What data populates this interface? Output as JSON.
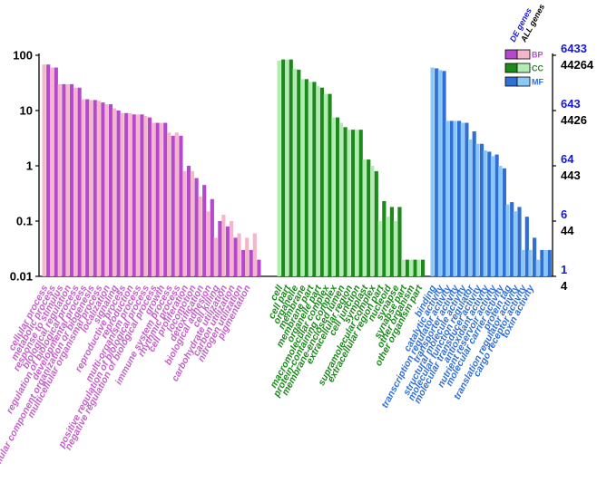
{
  "chart_data": {
    "type": "bar",
    "y_scale": "log",
    "ylim": [
      0.01,
      100
    ],
    "y_ticks": [
      "100",
      "10",
      "1",
      "0.1",
      "0.01"
    ],
    "right_axis": [
      {
        "de": "6433",
        "all": "44264"
      },
      {
        "de": "643",
        "all": "4426"
      },
      {
        "de": "64",
        "all": "443"
      },
      {
        "de": "6",
        "all": "44"
      },
      {
        "de": "1",
        "all": "4"
      }
    ],
    "legend": {
      "header_de": "DE genes",
      "header_all": "ALL genes",
      "items": [
        {
          "label": "BP",
          "de_color": "#b449cf",
          "all_color": "#f4b6c9",
          "text_color": "#b449cf"
        },
        {
          "label": "CC",
          "de_color": "#1b8a1b",
          "all_color": "#b3ecb3",
          "text_color": "#1b8a1b"
        },
        {
          "label": "MF",
          "de_color": "#2f6fd6",
          "all_color": "#8cc8f5",
          "text_color": "#2f6fd6"
        }
      ]
    },
    "groups": [
      {
        "name": "BP",
        "de_color": "#b449cf",
        "all_color": "#f4b6c9",
        "label_color": "#c45fc9",
        "categories": [
          {
            "label": "cellular process",
            "de": 68,
            "all": 68
          },
          {
            "label": "metabolic process",
            "de": 60,
            "all": 60
          },
          {
            "label": "response to stimulus",
            "de": 30,
            "all": 30
          },
          {
            "label": "biological regulation",
            "de": 30,
            "all": 30
          },
          {
            "label": "regulation of biological process",
            "de": 26,
            "all": 26
          },
          {
            "label": "developmental process",
            "de": 16,
            "all": 16
          },
          {
            "label": "cellular component organization or biogenesis",
            "de": 15.5,
            "all": 15.5
          },
          {
            "label": "multicellular organismal process",
            "de": 14,
            "all": 15
          },
          {
            "label": "localization",
            "de": 13,
            "all": 13
          },
          {
            "label": "signaling",
            "de": 10,
            "all": 11
          },
          {
            "label": "reproductive process",
            "de": 9,
            "all": 9
          },
          {
            "label": "reproduction",
            "de": 8.5,
            "all": 9
          },
          {
            "label": "multi-organism process",
            "de": 8.5,
            "all": 8.5
          },
          {
            "label": "positive regulation of biological process",
            "de": 7.5,
            "all": 8
          },
          {
            "label": "negative regulation of biological process",
            "de": 6,
            "all": 6
          },
          {
            "label": "growth",
            "de": 6,
            "all": 6
          },
          {
            "label": "immune system process",
            "de": 3.5,
            "all": 4
          },
          {
            "label": "rhythmic process",
            "de": 3.5,
            "all": 4
          },
          {
            "label": "cell proliferation",
            "de": 1,
            "all": 0.8
          },
          {
            "label": "locomotion",
            "de": 0.6,
            "all": 0.8
          },
          {
            "label": "detoxification",
            "de": 0.45,
            "all": 0.28
          },
          {
            "label": "biological adhesion",
            "de": 0.25,
            "all": 0.15
          },
          {
            "label": "cell killing",
            "de": 0.1,
            "all": 0.05
          },
          {
            "label": "carbohydrate utilization",
            "de": 0.08,
            "all": 0.13
          },
          {
            "label": "carbon utilization",
            "de": 0.05,
            "all": 0.1
          },
          {
            "label": "nitrogen utilization",
            "de": 0.03,
            "all": 0.06
          },
          {
            "label": "pigmentation",
            "de": 0.03,
            "all": 0.05
          },
          {
            "label": "",
            "de": 0.02,
            "all": 0.06
          }
        ]
      },
      {
        "name": "CC",
        "de_color": "#1b8a1b",
        "all_color": "#b3ecb3",
        "label_color": "#1b8a1b",
        "categories": [
          {
            "label": "cell",
            "de": 84,
            "all": 80
          },
          {
            "label": "cell part",
            "de": 84,
            "all": 84
          },
          {
            "label": "organelle",
            "de": 55,
            "all": 57
          },
          {
            "label": "membrane",
            "de": 37,
            "all": 37
          },
          {
            "label": "membrane part",
            "de": 33,
            "all": 33
          },
          {
            "label": "organelle part",
            "de": 26,
            "all": 28
          },
          {
            "label": "macromolecular complex",
            "de": 20,
            "all": 20
          },
          {
            "label": "protein-containing complex",
            "de": 7.5,
            "all": 7.5
          },
          {
            "label": "membrane-enclosed lumen",
            "de": 5,
            "all": 6
          },
          {
            "label": "extracellular region",
            "de": 4.5,
            "all": 4.5
          },
          {
            "label": "cell junction",
            "de": 4.5,
            "all": 4.5
          },
          {
            "label": "symplast",
            "de": 1.3,
            "all": 1.3
          },
          {
            "label": "supramolecular complex",
            "de": 0.8,
            "all": 1
          },
          {
            "label": "extracellular region part",
            "de": 0.23,
            "all": 0.1
          },
          {
            "label": "nucleoid",
            "de": 0.18,
            "all": 0.12
          },
          {
            "label": "synapse",
            "de": 0.18,
            "all": 0.1
          },
          {
            "label": "synapse part",
            "de": 0.02,
            "all": 0.02
          },
          {
            "label": "other organism",
            "de": 0.02,
            "all": 0.02
          },
          {
            "label": "other organism part",
            "de": 0.02,
            "all": 0.02
          }
        ]
      },
      {
        "name": "MF",
        "de_color": "#2f6fd6",
        "all_color": "#8cc8f5",
        "label_color": "#2f6fd6",
        "categories": [
          {
            "label": "binding",
            "de": 58,
            "all": 60
          },
          {
            "label": "catalytic activity",
            "de": 52,
            "all": 54
          },
          {
            "label": "transcription regulator activity",
            "de": 6.5,
            "all": 6.5
          },
          {
            "label": "transporter activity",
            "de": 6.5,
            "all": 6.5
          },
          {
            "label": "structural molecule activity",
            "de": 6,
            "all": 6
          },
          {
            "label": "molecular function regulator",
            "de": 4.2,
            "all": 3
          },
          {
            "label": "molecular transducer activity",
            "de": 2.5,
            "all": 2.5
          },
          {
            "label": "antioxidant activity",
            "de": 1.8,
            "all": 1.9
          },
          {
            "label": "nutrient reservoir activity",
            "de": 1.6,
            "all": 1.5
          },
          {
            "label": "molecular carrier activity",
            "de": 0.9,
            "all": 1
          },
          {
            "label": "protein tag",
            "de": 0.22,
            "all": 0.2
          },
          {
            "label": "translation regulator activity",
            "de": 0.18,
            "all": 0.15
          },
          {
            "label": "cargo receptor activity",
            "de": 0.12,
            "all": 0.03
          },
          {
            "label": "toxin activity",
            "de": 0.05,
            "all": 0.03
          },
          {
            "label": "",
            "de": 0.03,
            "all": 0.02
          },
          {
            "label": "",
            "de": 0.03,
            "all": 0.03
          }
        ]
      }
    ]
  }
}
